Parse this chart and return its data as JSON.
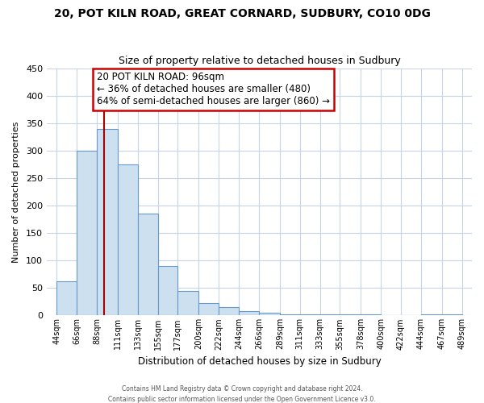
{
  "title": "20, POT KILN ROAD, GREAT CORNARD, SUDBURY, CO10 0DG",
  "subtitle": "Size of property relative to detached houses in Sudbury",
  "xlabel": "Distribution of detached houses by size in Sudbury",
  "ylabel": "Number of detached properties",
  "bar_left_edges": [
    44,
    66,
    88,
    111,
    133,
    155,
    177,
    200,
    222,
    244,
    266,
    289,
    311,
    333,
    355,
    378,
    400,
    422,
    444,
    467
  ],
  "bar_heights": [
    62,
    300,
    340,
    275,
    185,
    90,
    45,
    23,
    15,
    8,
    5,
    2,
    2,
    2,
    2,
    2,
    0,
    0,
    2,
    2
  ],
  "bar_widths": [
    22,
    22,
    23,
    22,
    22,
    22,
    23,
    22,
    22,
    22,
    23,
    22,
    22,
    22,
    23,
    22,
    22,
    22,
    23,
    22
  ],
  "bar_color": "#cce0f0",
  "bar_edge_color": "#6699cc",
  "tick_labels": [
    "44sqm",
    "66sqm",
    "88sqm",
    "111sqm",
    "133sqm",
    "155sqm",
    "177sqm",
    "200sqm",
    "222sqm",
    "244sqm",
    "266sqm",
    "289sqm",
    "311sqm",
    "333sqm",
    "355sqm",
    "378sqm",
    "400sqm",
    "422sqm",
    "444sqm",
    "467sqm",
    "489sqm"
  ],
  "tick_positions": [
    44,
    66,
    88,
    111,
    133,
    155,
    177,
    200,
    222,
    244,
    266,
    289,
    311,
    333,
    355,
    378,
    400,
    422,
    444,
    467,
    489
  ],
  "yticks": [
    0,
    50,
    100,
    150,
    200,
    250,
    300,
    350,
    400,
    450
  ],
  "ylim": [
    0,
    450
  ],
  "xlim": [
    33,
    500
  ],
  "vline_x": 96,
  "vline_color": "#aa0000",
  "annotation_title": "20 POT KILN ROAD: 96sqm",
  "annotation_line1": "← 36% of detached houses are smaller (480)",
  "annotation_line2": "64% of semi-detached houses are larger (860) →",
  "footer1": "Contains HM Land Registry data © Crown copyright and database right 2024.",
  "footer2": "Contains public sector information licensed under the Open Government Licence v3.0.",
  "background_color": "#ffffff",
  "grid_color": "#c8d4e4"
}
